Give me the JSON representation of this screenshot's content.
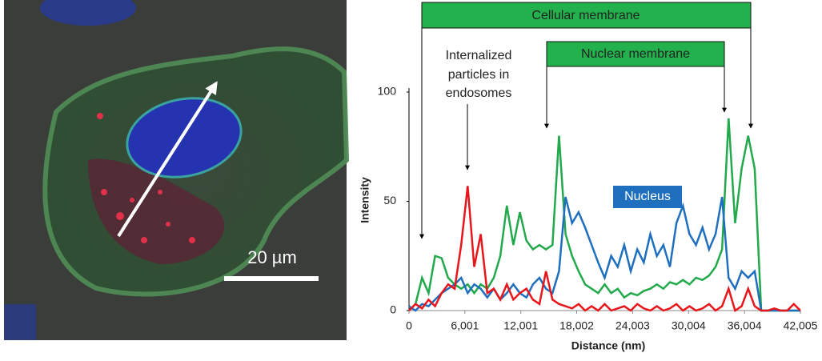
{
  "chart_data": {
    "type": "line",
    "scale_bar_label": "20 µm",
    "annotations": {
      "cellular_membrane": "Cellular membrane",
      "nuclear_membrane": "Nuclear membrane",
      "particles": [
        "Internalized",
        "particles in",
        "endosomes"
      ],
      "nucleus": "Nucleus"
    },
    "xlabel": "Distance (nm)",
    "ylabel": "Intensity",
    "xlim": [
      0,
      42005
    ],
    "ylim": [
      0,
      100
    ],
    "xticks": [
      0,
      {
        "value": 6001,
        "label": "6,001"
      },
      {
        "value": 12001,
        "label": "12,001"
      },
      {
        "value": 18002,
        "label": "18,002"
      },
      {
        "value": 24003,
        "label": "24,003"
      },
      {
        "value": 30004,
        "label": "30,004"
      },
      {
        "value": 36004,
        "label": "36,004"
      },
      {
        "value": 42005,
        "label": "42,005"
      }
    ],
    "yticks": [
      0,
      50,
      100
    ],
    "x": [
      0,
      700,
      1400,
      2100,
      2800,
      3500,
      4200,
      4900,
      5600,
      6300,
      7000,
      7700,
      8400,
      9100,
      9800,
      10500,
      11200,
      11900,
      12600,
      13300,
      14000,
      14700,
      15400,
      16100,
      16800,
      17500,
      18200,
      18900,
      19600,
      20300,
      21000,
      21700,
      22400,
      23100,
      23800,
      24500,
      25200,
      25900,
      26600,
      27300,
      28000,
      28700,
      29400,
      30100,
      30800,
      31500,
      32200,
      32900,
      33600,
      34300,
      35000,
      35700,
      36400,
      37100,
      37800,
      38500,
      39200,
      39900,
      40600,
      41300,
      42000
    ],
    "series": [
      {
        "color": "#22a94b",
        "values": [
          0,
          3,
          15,
          8,
          25,
          24,
          15,
          12,
          10,
          12,
          8,
          12,
          10,
          15,
          25,
          48,
          30,
          45,
          32,
          28,
          30,
          28,
          30,
          80,
          35,
          25,
          18,
          12,
          10,
          8,
          12,
          8,
          10,
          6,
          8,
          7,
          9,
          10,
          12,
          10,
          13,
          12,
          14,
          12,
          15,
          14,
          16,
          20,
          28,
          88,
          40,
          65,
          80,
          65,
          0,
          0,
          0,
          0,
          0,
          0,
          0
        ]
      },
      {
        "color": "#1f6fbf",
        "values": [
          2,
          0,
          3,
          2,
          5,
          8,
          10,
          12,
          15,
          8,
          12,
          10,
          6,
          10,
          5,
          8,
          12,
          8,
          6,
          12,
          15,
          10,
          8,
          18,
          52,
          40,
          45,
          38,
          30,
          22,
          15,
          25,
          20,
          30,
          18,
          28,
          22,
          35,
          25,
          30,
          20,
          40,
          48,
          35,
          30,
          38,
          28,
          35,
          52,
          15,
          10,
          18,
          15,
          18,
          0,
          0,
          0,
          0,
          0,
          0,
          0
        ]
      },
      {
        "color": "#e8151b",
        "values": [
          0,
          3,
          1,
          5,
          2,
          8,
          12,
          10,
          30,
          57,
          20,
          35,
          8,
          10,
          5,
          12,
          5,
          8,
          10,
          5,
          3,
          18,
          5,
          3,
          2,
          1,
          3,
          0,
          2,
          0,
          3,
          0,
          1,
          2,
          0,
          3,
          1,
          0,
          2,
          0,
          1,
          3,
          0,
          2,
          0,
          1,
          3,
          0,
          2,
          10,
          0,
          2,
          10,
          2,
          0,
          0,
          1,
          0,
          0,
          3,
          0
        ]
      }
    ]
  }
}
